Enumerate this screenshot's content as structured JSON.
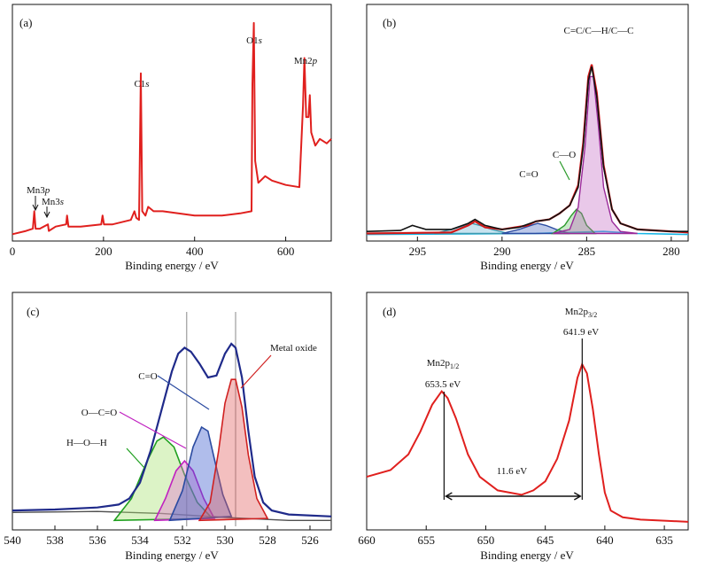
{
  "chart_data": [
    {
      "id": "a",
      "type": "line",
      "panel_label": "(a)",
      "xlabel": "Binding energy / eV",
      "ylabel": "",
      "xlim": [
        0,
        700
      ],
      "ylim": [
        0,
        100
      ],
      "x_reversed": false,
      "xticks": [
        0,
        200,
        400,
        600
      ],
      "yticks_shown": false,
      "series": [
        {
          "color": "#e0201e",
          "points": [
            [
              0,
              1.5
            ],
            [
              30,
              3
            ],
            [
              45,
              4
            ],
            [
              48,
              12
            ],
            [
              51,
              4
            ],
            [
              60,
              4
            ],
            [
              78,
              6
            ],
            [
              80,
              3
            ],
            [
              95,
              5
            ],
            [
              118,
              6
            ],
            [
              120,
              10
            ],
            [
              123,
              5
            ],
            [
              150,
              5
            ],
            [
              195,
              6
            ],
            [
              198,
              10
            ],
            [
              201,
              6
            ],
            [
              220,
              6
            ],
            [
              260,
              8
            ],
            [
              268,
              12
            ],
            [
              272,
              9
            ],
            [
              278,
              8
            ],
            [
              282,
              75
            ],
            [
              285,
              12
            ],
            [
              292,
              10
            ],
            [
              298,
              14
            ],
            [
              310,
              12
            ],
            [
              330,
              12
            ],
            [
              400,
              10
            ],
            [
              460,
              10
            ],
            [
              500,
              11
            ],
            [
              525,
              12
            ],
            [
              527,
              70
            ],
            [
              530,
              98
            ],
            [
              533,
              35
            ],
            [
              540,
              25
            ],
            [
              555,
              28
            ],
            [
              570,
              26
            ],
            [
              600,
              24
            ],
            [
              630,
              23
            ],
            [
              638,
              60
            ],
            [
              641,
              82
            ],
            [
              645,
              55
            ],
            [
              650,
              55
            ],
            [
              653,
              65
            ],
            [
              656,
              48
            ],
            [
              665,
              42
            ],
            [
              675,
              45
            ],
            [
              690,
              43
            ],
            [
              700,
              45
            ]
          ]
        }
      ],
      "annotations": [
        {
          "text": "Mn3p",
          "x": 48
        },
        {
          "text": "Mn3s",
          "x": 78
        },
        {
          "text": "C1s",
          "x": 282
        },
        {
          "text": "O1s",
          "x": 530
        },
        {
          "text": "Mn2p",
          "x": 641
        }
      ]
    },
    {
      "id": "b",
      "type": "line",
      "panel_label": "(b)",
      "xlabel": "Binding energy / eV",
      "ylabel": "",
      "xlim": [
        298,
        279
      ],
      "ylim": [
        0,
        100
      ],
      "x_reversed": true,
      "xticks": [
        295,
        290,
        285,
        280
      ],
      "yticks_shown": false,
      "series": [
        {
          "role": "measured",
          "color": "#111111",
          "points": [
            [
              298,
              3
            ],
            [
              296,
              3.5
            ],
            [
              295.3,
              6
            ],
            [
              294.5,
              4
            ],
            [
              293,
              4
            ],
            [
              292,
              7
            ],
            [
              291.6,
              9
            ],
            [
              291,
              6
            ],
            [
              290,
              4
            ],
            [
              289,
              5
            ],
            [
              288,
              8
            ],
            [
              287.2,
              9
            ],
            [
              286.6,
              12
            ],
            [
              286,
              16
            ],
            [
              285.5,
              25
            ],
            [
              285.2,
              45
            ],
            [
              284.9,
              78
            ],
            [
              284.7,
              85
            ],
            [
              284.4,
              70
            ],
            [
              284,
              35
            ],
            [
              283.5,
              14
            ],
            [
              283,
              7
            ],
            [
              282,
              4
            ],
            [
              280,
              3
            ],
            [
              279,
              3
            ]
          ]
        },
        {
          "role": "envelope",
          "color": "#d01818",
          "points": [
            [
              298,
              2
            ],
            [
              293,
              2.5
            ],
            [
              292,
              6
            ],
            [
              291.6,
              8
            ],
            [
              291,
              5
            ],
            [
              290,
              4
            ],
            [
              288.5,
              6
            ],
            [
              288,
              8
            ],
            [
              287.2,
              9
            ],
            [
              286.6,
              12
            ],
            [
              286,
              16
            ],
            [
              285.5,
              26
            ],
            [
              285.2,
              47
            ],
            [
              284.9,
              80
            ],
            [
              284.7,
              86
            ],
            [
              284.4,
              72
            ],
            [
              284,
              36
            ],
            [
              283.5,
              14
            ],
            [
              283,
              7
            ],
            [
              282,
              4
            ],
            [
              279,
              2.5
            ]
          ]
        },
        {
          "role": "component",
          "label": "C=C/C—H/C—C",
          "color": "#9a2a9a",
          "fill": "#c060c0",
          "points": [
            [
              287,
              2
            ],
            [
              286,
              4
            ],
            [
              285.5,
              15
            ],
            [
              285.1,
              45
            ],
            [
              284.8,
              80
            ],
            [
              284.6,
              80
            ],
            [
              284.3,
              55
            ],
            [
              284,
              25
            ],
            [
              283.5,
              8
            ],
            [
              283,
              3
            ],
            [
              282,
              2
            ]
          ]
        },
        {
          "role": "component",
          "label": "C—O",
          "color": "#2a9a2a",
          "fill": "#60c060",
          "points": [
            [
              287,
              2
            ],
            [
              286.3,
              6
            ],
            [
              285.9,
              11
            ],
            [
              285.6,
              14
            ],
            [
              285.3,
              12
            ],
            [
              285,
              6
            ],
            [
              284.5,
              2
            ]
          ]
        },
        {
          "role": "component",
          "label": "C=O",
          "color": "#2a4aa0",
          "fill": "#4060c0",
          "points": [
            [
              290,
              2
            ],
            [
              289,
              4
            ],
            [
              288.3,
              6
            ],
            [
              287.9,
              7
            ],
            [
              287.4,
              6
            ],
            [
              286.8,
              4
            ],
            [
              286,
              2
            ]
          ]
        },
        {
          "role": "component",
          "color": "#3a9ab0",
          "fill": "#60b0d0",
          "points": [
            [
              294,
              2
            ],
            [
              293,
              4
            ],
            [
              292.2,
              6
            ],
            [
              291.8,
              7
            ],
            [
              291.3,
              6
            ],
            [
              290.6,
              4
            ],
            [
              289.6,
              2
            ]
          ]
        },
        {
          "role": "background",
          "color": "#19b6e6",
          "points": [
            [
              298,
              1.5
            ],
            [
              288,
              2
            ],
            [
              286,
              2.5
            ],
            [
              284,
              3
            ],
            [
              282,
              2
            ],
            [
              279,
              1.5
            ]
          ]
        }
      ],
      "annotations": [
        {
          "text": "C=C/C—H/C—C",
          "x": 284.8
        },
        {
          "text": "C—O",
          "x": 285.6
        },
        {
          "text": "C=O",
          "x": 288.0
        }
      ]
    },
    {
      "id": "c",
      "type": "line",
      "panel_label": "(c)",
      "xlabel": "Binding energy / eV",
      "ylabel": "",
      "xlim": [
        540,
        525
      ],
      "ylim": [
        0,
        100
      ],
      "x_reversed": true,
      "xticks": [
        540,
        538,
        536,
        534,
        532,
        530,
        528,
        526
      ],
      "yticks_shown": false,
      "series": [
        {
          "role": "measured",
          "color": "#1f2a8a",
          "points": [
            [
              540,
              8
            ],
            [
              538,
              8.5
            ],
            [
              536,
              9.5
            ],
            [
              535,
              11
            ],
            [
              534.5,
              14
            ],
            [
              534,
              22
            ],
            [
              533.5,
              38
            ],
            [
              533,
              58
            ],
            [
              532.5,
              78
            ],
            [
              532.2,
              87
            ],
            [
              531.9,
              90
            ],
            [
              531.6,
              88
            ],
            [
              531.2,
              82
            ],
            [
              530.8,
              75
            ],
            [
              530.4,
              76
            ],
            [
              530,
              87
            ],
            [
              529.7,
              92
            ],
            [
              529.5,
              90
            ],
            [
              529.2,
              75
            ],
            [
              528.9,
              48
            ],
            [
              528.6,
              25
            ],
            [
              528.2,
              12
            ],
            [
              527.8,
              8
            ],
            [
              527,
              6
            ],
            [
              525,
              5
            ]
          ]
        },
        {
          "role": "component",
          "label": "Metal oxide",
          "color": "#d02020",
          "fill": "#e06060",
          "points": [
            [
              531.2,
              3
            ],
            [
              530.7,
              12
            ],
            [
              530.3,
              38
            ],
            [
              530,
              62
            ],
            [
              529.7,
              74
            ],
            [
              529.5,
              74
            ],
            [
              529.2,
              60
            ],
            [
              528.9,
              36
            ],
            [
              528.5,
              14
            ],
            [
              528,
              4
            ]
          ]
        },
        {
          "role": "component",
          "label": "C=O",
          "color": "#2a4aa0",
          "fill": "#3a5acc",
          "points": [
            [
              532.6,
              3
            ],
            [
              532,
              18
            ],
            [
              531.5,
              40
            ],
            [
              531.1,
              50
            ],
            [
              530.8,
              48
            ],
            [
              530.5,
              34
            ],
            [
              530.1,
              16
            ],
            [
              529.7,
              5
            ]
          ]
        },
        {
          "role": "component",
          "label": "O—C=O",
          "color": "#c020c0",
          "fill": "#e070d0",
          "points": [
            [
              533.3,
              3
            ],
            [
              532.8,
              14
            ],
            [
              532.3,
              28
            ],
            [
              531.9,
              33
            ],
            [
              531.5,
              28
            ],
            [
              531,
              14
            ],
            [
              530.5,
              4
            ]
          ]
        },
        {
          "role": "component",
          "label": "H—O—H",
          "color": "#20a020",
          "fill": "#a8e070",
          "points": [
            [
              535.2,
              3
            ],
            [
              534.4,
              14
            ],
            [
              533.7,
              32
            ],
            [
              533.2,
              43
            ],
            [
              532.9,
              45
            ],
            [
              532.4,
              40
            ],
            [
              531.9,
              26
            ],
            [
              531.3,
              12
            ],
            [
              530.6,
              4
            ]
          ]
        },
        {
          "role": "background",
          "color": "#505050",
          "points": [
            [
              540,
              7
            ],
            [
              536,
              7.5
            ],
            [
              533,
              6.5
            ],
            [
              530,
              4.5
            ],
            [
              527,
              3
            ],
            [
              525,
              3
            ]
          ]
        }
      ],
      "reference_lines_x": [
        531.8,
        529.5
      ],
      "annotations": [
        {
          "text": "Metal oxide"
        },
        {
          "text": "C=O"
        },
        {
          "text": "O—C=O"
        },
        {
          "text": "H—O—H"
        }
      ]
    },
    {
      "id": "d",
      "type": "line",
      "panel_label": "(d)",
      "xlabel": "Binding energy / eV",
      "ylabel": "",
      "xlim": [
        660,
        633
      ],
      "ylim": [
        0,
        100
      ],
      "x_reversed": true,
      "xticks": [
        660,
        655,
        650,
        645,
        640,
        635
      ],
      "yticks_shown": false,
      "series": [
        {
          "color": "#e0201e",
          "points": [
            [
              660,
              22
            ],
            [
              658,
              25
            ],
            [
              656.5,
              32
            ],
            [
              655.5,
              42
            ],
            [
              654.5,
              54
            ],
            [
              653.7,
              60
            ],
            [
              653.2,
              57
            ],
            [
              652.5,
              48
            ],
            [
              651.5,
              32
            ],
            [
              650.5,
              22
            ],
            [
              649,
              16
            ],
            [
              647,
              14
            ],
            [
              646,
              16
            ],
            [
              645,
              20
            ],
            [
              644,
              30
            ],
            [
              643,
              47
            ],
            [
              642.3,
              66
            ],
            [
              641.9,
              72
            ],
            [
              641.5,
              68
            ],
            [
              641,
              52
            ],
            [
              640.5,
              32
            ],
            [
              640,
              15
            ],
            [
              639.5,
              7
            ],
            [
              638.5,
              4
            ],
            [
              637,
              3
            ],
            [
              635,
              2.5
            ],
            [
              633,
              2
            ]
          ]
        }
      ],
      "annotations": [
        {
          "label": "Mn2p1/2",
          "main": "Mn2p",
          "sub": "1/2",
          "value": "653.5 eV",
          "x": 653.5
        },
        {
          "label": "Mn2p3/2",
          "main": "Mn2p",
          "sub": "3/2",
          "value": "641.9 eV",
          "x": 641.9
        },
        {
          "text": "11.6 eV"
        }
      ]
    }
  ]
}
